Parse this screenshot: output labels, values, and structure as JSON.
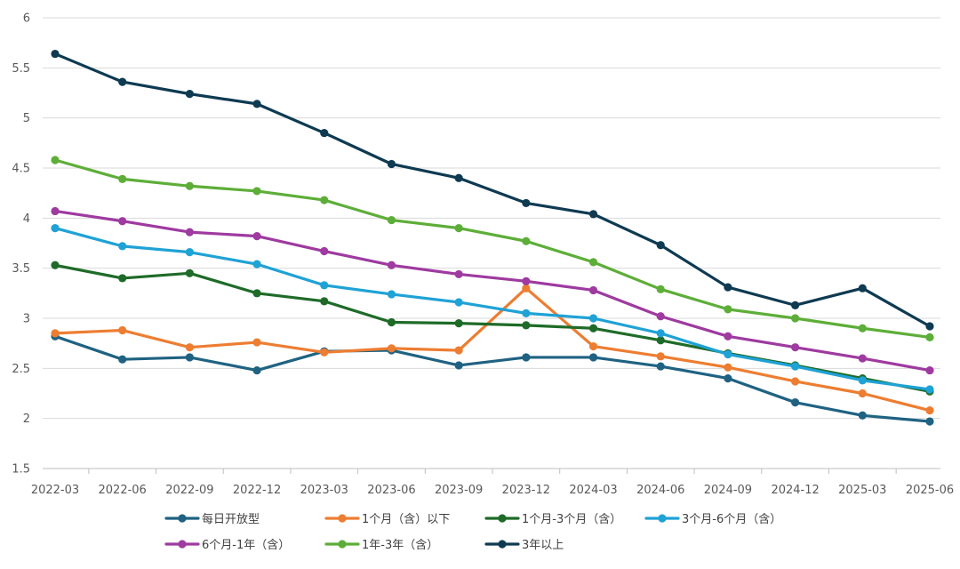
{
  "chart_data": {
    "type": "line",
    "title": "",
    "xlabel": "",
    "ylabel": "",
    "ylim": [
      1.5,
      6
    ],
    "yticks": [
      "1.5",
      "2",
      "2.5",
      "3",
      "3.5",
      "4",
      "4.5",
      "5",
      "5.5",
      "6"
    ],
    "grid": true,
    "legend_position": "bottom",
    "categories": [
      "2022-03",
      "2022-06",
      "2022-09",
      "2022-12",
      "2023-03",
      "2023-06",
      "2023-09",
      "2023-12",
      "2024-03",
      "2024-06",
      "2024-09",
      "2024-12",
      "2025-03",
      "2025-06"
    ],
    "series": [
      {
        "name": "每日开放型",
        "color": "#1F6282",
        "values": [
          2.82,
          2.59,
          2.61,
          2.48,
          2.67,
          2.68,
          2.53,
          2.61,
          2.61,
          2.52,
          2.4,
          2.16,
          2.03,
          1.97
        ]
      },
      {
        "name": "1个月（含）以下",
        "color": "#ED7D31",
        "values": [
          2.85,
          2.88,
          2.71,
          2.76,
          2.66,
          2.7,
          2.68,
          3.3,
          2.72,
          2.62,
          2.51,
          2.37,
          2.25,
          2.08
        ]
      },
      {
        "name": "1个月-3个月（含）",
        "color": "#1E6B28",
        "values": [
          3.53,
          3.4,
          3.45,
          3.25,
          3.17,
          2.96,
          2.95,
          2.93,
          2.9,
          2.78,
          2.65,
          2.53,
          2.4,
          2.27
        ]
      },
      {
        "name": "3个月-6个月（含）",
        "color": "#1FA2D6",
        "values": [
          3.9,
          3.72,
          3.66,
          3.54,
          3.33,
          3.24,
          3.16,
          3.05,
          3.0,
          2.85,
          2.64,
          2.52,
          2.38,
          2.29
        ]
      },
      {
        "name": "6个月-1年（含）",
        "color": "#9E3AA0",
        "values": [
          4.07,
          3.97,
          3.86,
          3.82,
          3.67,
          3.53,
          3.44,
          3.37,
          3.28,
          3.02,
          2.82,
          2.71,
          2.6,
          2.48
        ]
      },
      {
        "name": "1年-3年（含）",
        "color": "#5DAE38",
        "values": [
          4.58,
          4.39,
          4.32,
          4.27,
          4.18,
          3.98,
          3.9,
          3.77,
          3.56,
          3.29,
          3.09,
          3.0,
          2.9,
          2.81
        ]
      },
      {
        "name": "3年以上",
        "color": "#0E3A52",
        "values": [
          5.64,
          5.36,
          5.24,
          5.14,
          4.85,
          4.54,
          4.4,
          4.15,
          4.04,
          3.73,
          3.31,
          3.13,
          3.3,
          2.92
        ]
      }
    ]
  }
}
